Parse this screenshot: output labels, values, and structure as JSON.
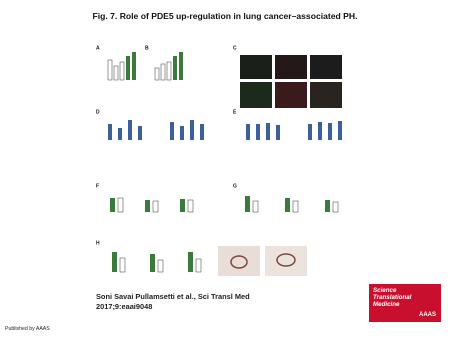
{
  "header": {
    "title": "Fig. 7. Role of PDE5 up-regulation in lung cancer–associated PH."
  },
  "figure": {
    "panels": [
      "A",
      "B",
      "C",
      "D",
      "E",
      "F",
      "G",
      "H"
    ]
  },
  "citation": {
    "lines": [
      "Soni Savai Pullamsetti et al., Sci Transl Med",
      "2017;9:eaai9048"
    ]
  },
  "logo": {
    "lines": [
      "Science",
      "Translational",
      "Medicine"
    ],
    "org": "AAAS"
  },
  "footer": "Published by AAAS"
}
